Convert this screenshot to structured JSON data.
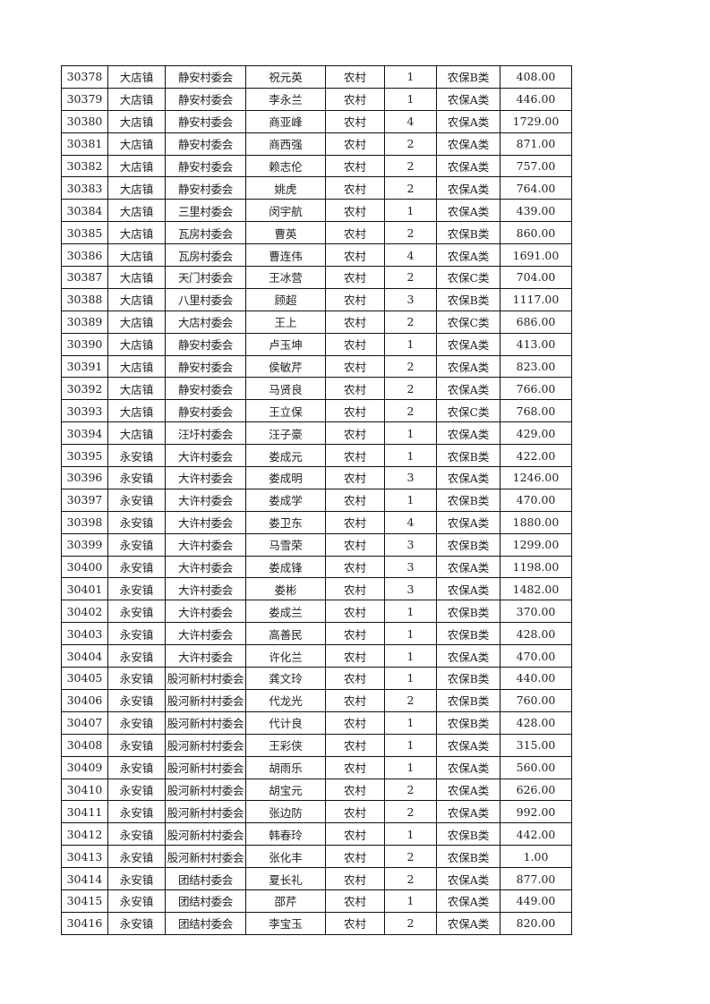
{
  "rows": [
    [
      "30378",
      "大店镇",
      "静安村委会",
      "祝元英",
      "农村",
      "1",
      "农保B类",
      "408.00"
    ],
    [
      "30379",
      "大店镇",
      "静安村委会",
      "李永兰",
      "农村",
      "1",
      "农保A类",
      "446.00"
    ],
    [
      "30380",
      "大店镇",
      "静安村委会",
      "商亚峰",
      "农村",
      "4",
      "农保A类",
      "1729.00"
    ],
    [
      "30381",
      "大店镇",
      "静安村委会",
      "商西强",
      "农村",
      "2",
      "农保A类",
      "871.00"
    ],
    [
      "30382",
      "大店镇",
      "静安村委会",
      "赖志伦",
      "农村",
      "2",
      "农保A类",
      "757.00"
    ],
    [
      "30383",
      "大店镇",
      "静安村委会",
      "姚虎",
      "农村",
      "2",
      "农保A类",
      "764.00"
    ],
    [
      "30384",
      "大店镇",
      "三里村委会",
      "闵宇航",
      "农村",
      "1",
      "农保A类",
      "439.00"
    ],
    [
      "30385",
      "大店镇",
      "瓦房村委会",
      "曹英",
      "农村",
      "2",
      "农保B类",
      "860.00"
    ],
    [
      "30386",
      "大店镇",
      "瓦房村委会",
      "曹连伟",
      "农村",
      "4",
      "农保A类",
      "1691.00"
    ],
    [
      "30387",
      "大店镇",
      "天门村委会",
      "王冰营",
      "农村",
      "2",
      "农保C类",
      "704.00"
    ],
    [
      "30388",
      "大店镇",
      "八里村委会",
      "顾超",
      "农村",
      "3",
      "农保B类",
      "1117.00"
    ],
    [
      "30389",
      "大店镇",
      "大店村委会",
      "王上",
      "农村",
      "2",
      "农保C类",
      "686.00"
    ],
    [
      "30390",
      "大店镇",
      "静安村委会",
      "卢玉坤",
      "农村",
      "1",
      "农保A类",
      "413.00"
    ],
    [
      "30391",
      "大店镇",
      "静安村委会",
      "侯敏芹",
      "农村",
      "2",
      "农保A类",
      "823.00"
    ],
    [
      "30392",
      "大店镇",
      "静安村委会",
      "马贤良",
      "农村",
      "2",
      "农保A类",
      "766.00"
    ],
    [
      "30393",
      "大店镇",
      "静安村委会",
      "王立保",
      "农村",
      "2",
      "农保C类",
      "768.00"
    ],
    [
      "30394",
      "大店镇",
      "汪圩村委会",
      "汪子豪",
      "农村",
      "1",
      "农保A类",
      "429.00"
    ],
    [
      "30395",
      "永安镇",
      "大许村委会",
      "娄成元",
      "农村",
      "1",
      "农保B类",
      "422.00"
    ],
    [
      "30396",
      "永安镇",
      "大许村委会",
      "娄成明",
      "农村",
      "3",
      "农保A类",
      "1246.00"
    ],
    [
      "30397",
      "永安镇",
      "大许村委会",
      "娄成学",
      "农村",
      "1",
      "农保B类",
      "470.00"
    ],
    [
      "30398",
      "永安镇",
      "大许村委会",
      "娄卫东",
      "农村",
      "4",
      "农保A类",
      "1880.00"
    ],
    [
      "30399",
      "永安镇",
      "大许村委会",
      "马雪荣",
      "农村",
      "3",
      "农保B类",
      "1299.00"
    ],
    [
      "30400",
      "永安镇",
      "大许村委会",
      "娄成锋",
      "农村",
      "3",
      "农保A类",
      "1198.00"
    ],
    [
      "30401",
      "永安镇",
      "大许村委会",
      "娄彬",
      "农村",
      "3",
      "农保A类",
      "1482.00"
    ],
    [
      "30402",
      "永安镇",
      "大许村委会",
      "娄成兰",
      "农村",
      "1",
      "农保B类",
      "370.00"
    ],
    [
      "30403",
      "永安镇",
      "大许村委会",
      "高善民",
      "农村",
      "1",
      "农保B类",
      "428.00"
    ],
    [
      "30404",
      "永安镇",
      "大许村委会",
      "许化兰",
      "农村",
      "1",
      "农保A类",
      "470.00"
    ],
    [
      "30405",
      "永安镇",
      "股河新村村委会",
      "龚文玲",
      "农村",
      "1",
      "农保B类",
      "440.00"
    ],
    [
      "30406",
      "永安镇",
      "股河新村村委会",
      "代龙光",
      "农村",
      "2",
      "农保B类",
      "760.00"
    ],
    [
      "30407",
      "永安镇",
      "股河新村村委会",
      "代计良",
      "农村",
      "1",
      "农保B类",
      "428.00"
    ],
    [
      "30408",
      "永安镇",
      "股河新村村委会",
      "王彩侠",
      "农村",
      "1",
      "农保A类",
      "315.00"
    ],
    [
      "30409",
      "永安镇",
      "股河新村村委会",
      "胡雨乐",
      "农村",
      "1",
      "农保A类",
      "560.00"
    ],
    [
      "30410",
      "永安镇",
      "股河新村村委会",
      "胡宝元",
      "农村",
      "2",
      "农保A类",
      "626.00"
    ],
    [
      "30411",
      "永安镇",
      "股河新村村委会",
      "张边防",
      "农村",
      "2",
      "农保A类",
      "992.00"
    ],
    [
      "30412",
      "永安镇",
      "股河新村村委会",
      "韩春玲",
      "农村",
      "1",
      "农保B类",
      "442.00"
    ],
    [
      "30413",
      "永安镇",
      "股河新村村委会",
      "张化丰",
      "农村",
      "2",
      "农保B类",
      "1.00"
    ],
    [
      "30414",
      "永安镇",
      "团结村委会",
      "夏长礼",
      "农村",
      "2",
      "农保A类",
      "877.00"
    ],
    [
      "30415",
      "永安镇",
      "团结村委会",
      "邵芹",
      "农村",
      "1",
      "农保A类",
      "449.00"
    ],
    [
      "30416",
      "永安镇",
      "团结村委会",
      "李宝玉",
      "农村",
      "2",
      "农保A类",
      "820.00"
    ]
  ]
}
